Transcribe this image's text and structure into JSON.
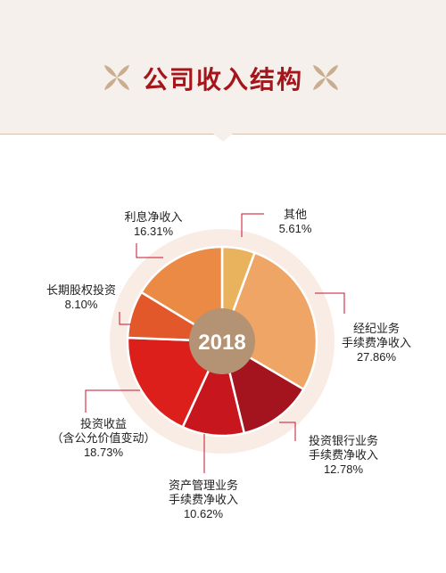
{
  "header": {
    "title": "公司收入结构"
  },
  "colors": {
    "title": "#a4161c",
    "ornament": "#c9ad8f",
    "center": "#b39374",
    "halo": "#f9ece4",
    "leader": "#c8102e"
  },
  "chart_data": {
    "type": "pie",
    "center_label": "2018",
    "unit": "%",
    "slices": [
      {
        "name": "其他",
        "label_lines": [
          "其他"
        ],
        "value": 5.61,
        "value_text": "5.61%",
        "color": "#e8b35c"
      },
      {
        "name": "经纪业务手续费净收入",
        "label_lines": [
          "经纪业务",
          "手续费净收入"
        ],
        "value": 27.86,
        "value_text": "27.86%",
        "color": "#eea565"
      },
      {
        "name": "投资银行业务手续费净收入",
        "label_lines": [
          "投资银行业务",
          "手续费净收入"
        ],
        "value": 12.78,
        "value_text": "12.78%",
        "color": "#a3141e"
      },
      {
        "name": "资产管理业务手续费净收入",
        "label_lines": [
          "资产管理业务",
          "手续费净收入"
        ],
        "value": 10.62,
        "value_text": "10.62%",
        "color": "#c8161f"
      },
      {
        "name": "投资收益（含公允价值变动）",
        "label_lines": [
          "投资收益",
          "（含公允价值变动）"
        ],
        "value": 18.73,
        "value_text": "18.73%",
        "color": "#dc1f1a"
      },
      {
        "name": "长期股权投资",
        "label_lines": [
          "长期股权投资"
        ],
        "value": 8.1,
        "value_text": "8.10%",
        "color": "#e2582a"
      },
      {
        "name": "利息净收入",
        "label_lines": [
          "利息净收入"
        ],
        "value": 16.31,
        "value_text": "16.31%",
        "color": "#ea8a45"
      }
    ]
  }
}
